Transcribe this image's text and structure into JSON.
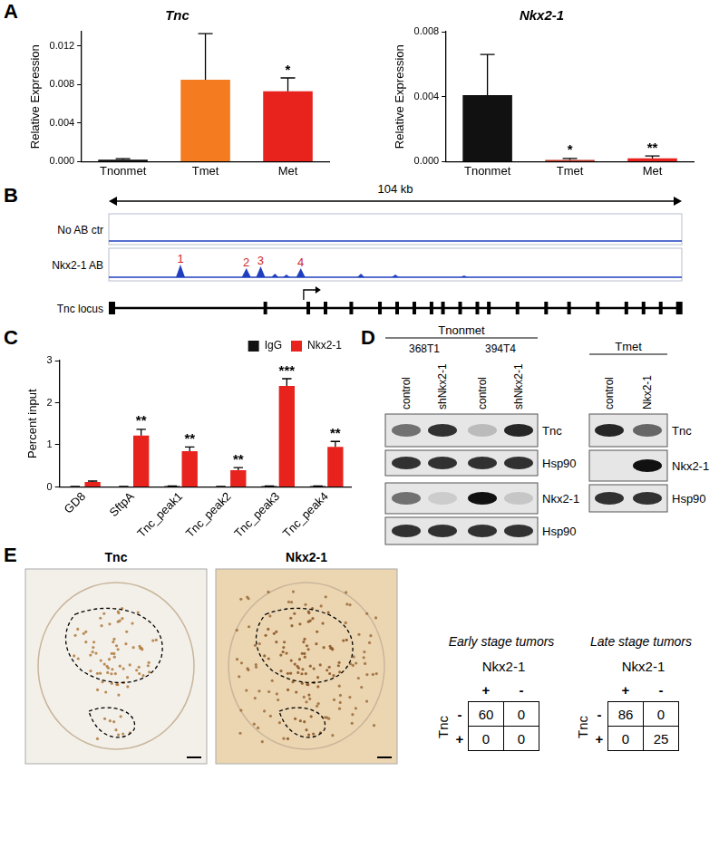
{
  "panel_labels": [
    "A",
    "B",
    "C",
    "D",
    "E"
  ],
  "chart_data": [
    {
      "type": "bar",
      "title": "Tnc",
      "y_label": "Relative Expression",
      "categories": [
        "Tnonmet",
        "Tmet",
        "Met"
      ],
      "values": [
        0.0002,
        0.0085,
        0.0073
      ],
      "errors": [
        0.0001,
        0.0048,
        0.0014
      ],
      "annotations": [
        null,
        null,
        "*"
      ],
      "colors": [
        "#111111",
        "#f47b20",
        "#e8231e"
      ],
      "ylim": [
        0,
        0.0135
      ],
      "yticks": [
        {
          "value": 0,
          "label": "0.000"
        },
        0.004,
        0.008,
        0.012
      ],
      "grid": false
    },
    {
      "type": "bar",
      "title": "Nkx2-1",
      "y_label": "Relative Expression",
      "categories": [
        "Tnonmet",
        "Tmet",
        "Met"
      ],
      "values": [
        0.0041,
        0.0001,
        0.0002
      ],
      "errors": [
        0.0025,
        0.0001,
        0.00015
      ],
      "annotations": [
        null,
        "*",
        "**"
      ],
      "colors": [
        "#111111",
        "#c0392b",
        "#e8231e"
      ],
      "ylim": [
        0,
        0.008
      ],
      "yticks": [
        {
          "value": 0,
          "label": "0.000"
        },
        0.004,
        0.008
      ],
      "grid": false
    },
    {
      "type": "bar",
      "y_label": "Percent input",
      "categories": [
        "GD8",
        "SftpA",
        "Tnc_peak1",
        "Tnc_peak2",
        "Tnc_peak3",
        "Tnc_peak4"
      ],
      "series": [
        {
          "name": "IgG",
          "color": "#111111",
          "values": [
            0.01,
            0.01,
            0.02,
            0.01,
            0.02,
            0.02
          ],
          "errors": [
            0.005,
            0.005,
            0.005,
            0.005,
            0.005,
            0.005
          ]
        },
        {
          "name": "Nkx2-1",
          "color": "#e8231e",
          "values": [
            0.12,
            1.22,
            0.85,
            0.4,
            2.4,
            0.95
          ],
          "errors": [
            0.02,
            0.15,
            0.1,
            0.06,
            0.17,
            0.13
          ],
          "annotations": [
            null,
            "**",
            "**",
            "**",
            "***",
            "**"
          ]
        }
      ],
      "ylim": [
        0,
        3
      ],
      "yticks": [
        0,
        1,
        2,
        3
      ],
      "grid": false,
      "legend": "top-right"
    }
  ],
  "track": {
    "scale_label": "104 kb",
    "tracks": [
      "No AB ctr",
      "Nkx2-1 AB"
    ],
    "peaks": [
      "1",
      "2",
      "3",
      "4"
    ],
    "gene": "Tnc locus"
  },
  "blots": [
    {
      "title": "Tnonmet",
      "samples": [
        "368T1",
        "394T4"
      ],
      "lanes": [
        "control",
        "shNkx2-1",
        "control",
        "shNkx2-1"
      ],
      "rows": [
        "Tnc",
        "Hsp90",
        "Nkx2-1",
        "Hsp90"
      ]
    },
    {
      "title": "Tmet",
      "lanes": [
        "control",
        "Nkx2-1"
      ],
      "rows": [
        "Tnc",
        "Nkx2-1",
        "Hsp90"
      ]
    }
  ],
  "ihc_images": [
    "Tnc",
    "Nkx2-1"
  ],
  "tables": [
    {
      "title": "Early stage tumors",
      "column_header": "Nkx2-1",
      "columns": [
        "+",
        "-"
      ],
      "row_header": "Tnc",
      "rows": [
        "-",
        "+"
      ],
      "cells": [
        [
          60,
          0
        ],
        [
          0,
          0
        ]
      ]
    },
    {
      "title": "Late stage tumors",
      "column_header": "Nkx2-1",
      "columns": [
        "+",
        "-"
      ],
      "row_header": "Tnc",
      "rows": [
        "-",
        "+"
      ],
      "cells": [
        [
          86,
          0
        ],
        [
          0,
          25
        ]
      ]
    }
  ]
}
